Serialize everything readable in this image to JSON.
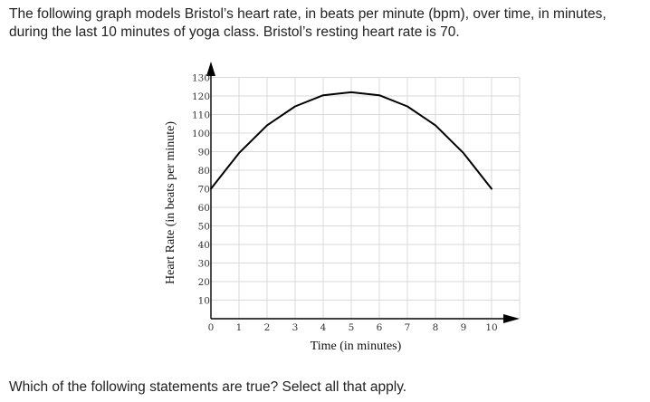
{
  "problem": {
    "intro": "The following graph models Bristol’s heart rate, in beats per minute (bpm), over time, in minutes, during the last 10 minutes of yoga class. Bristol’s resting heart rate is 70.",
    "question": "Which of the following statements are true? Select all that apply."
  },
  "chart_data": {
    "type": "line",
    "xlabel": "Time (in minutes)",
    "ylabel": "Heart Rate (in beats per minute)",
    "xlim": [
      0,
      11
    ],
    "ylim": [
      0,
      130
    ],
    "x_ticks": [
      0,
      1,
      2,
      3,
      4,
      5,
      6,
      7,
      8,
      9,
      10
    ],
    "y_ticks": [
      10,
      20,
      30,
      40,
      50,
      60,
      70,
      80,
      90,
      100,
      110,
      120,
      130
    ],
    "grid": true,
    "series": [
      {
        "x": [
          0,
          1,
          2,
          3,
          4,
          5,
          6,
          7,
          8,
          9,
          10
        ],
        "y": [
          70,
          89.2,
          104.2,
          114.4,
          120.4,
          122,
          120.4,
          114.4,
          104.2,
          89.2,
          70
        ]
      }
    ],
    "colors": {
      "curve": "#000000",
      "grid": "#d9d9d9",
      "axis": "#000000"
    }
  }
}
